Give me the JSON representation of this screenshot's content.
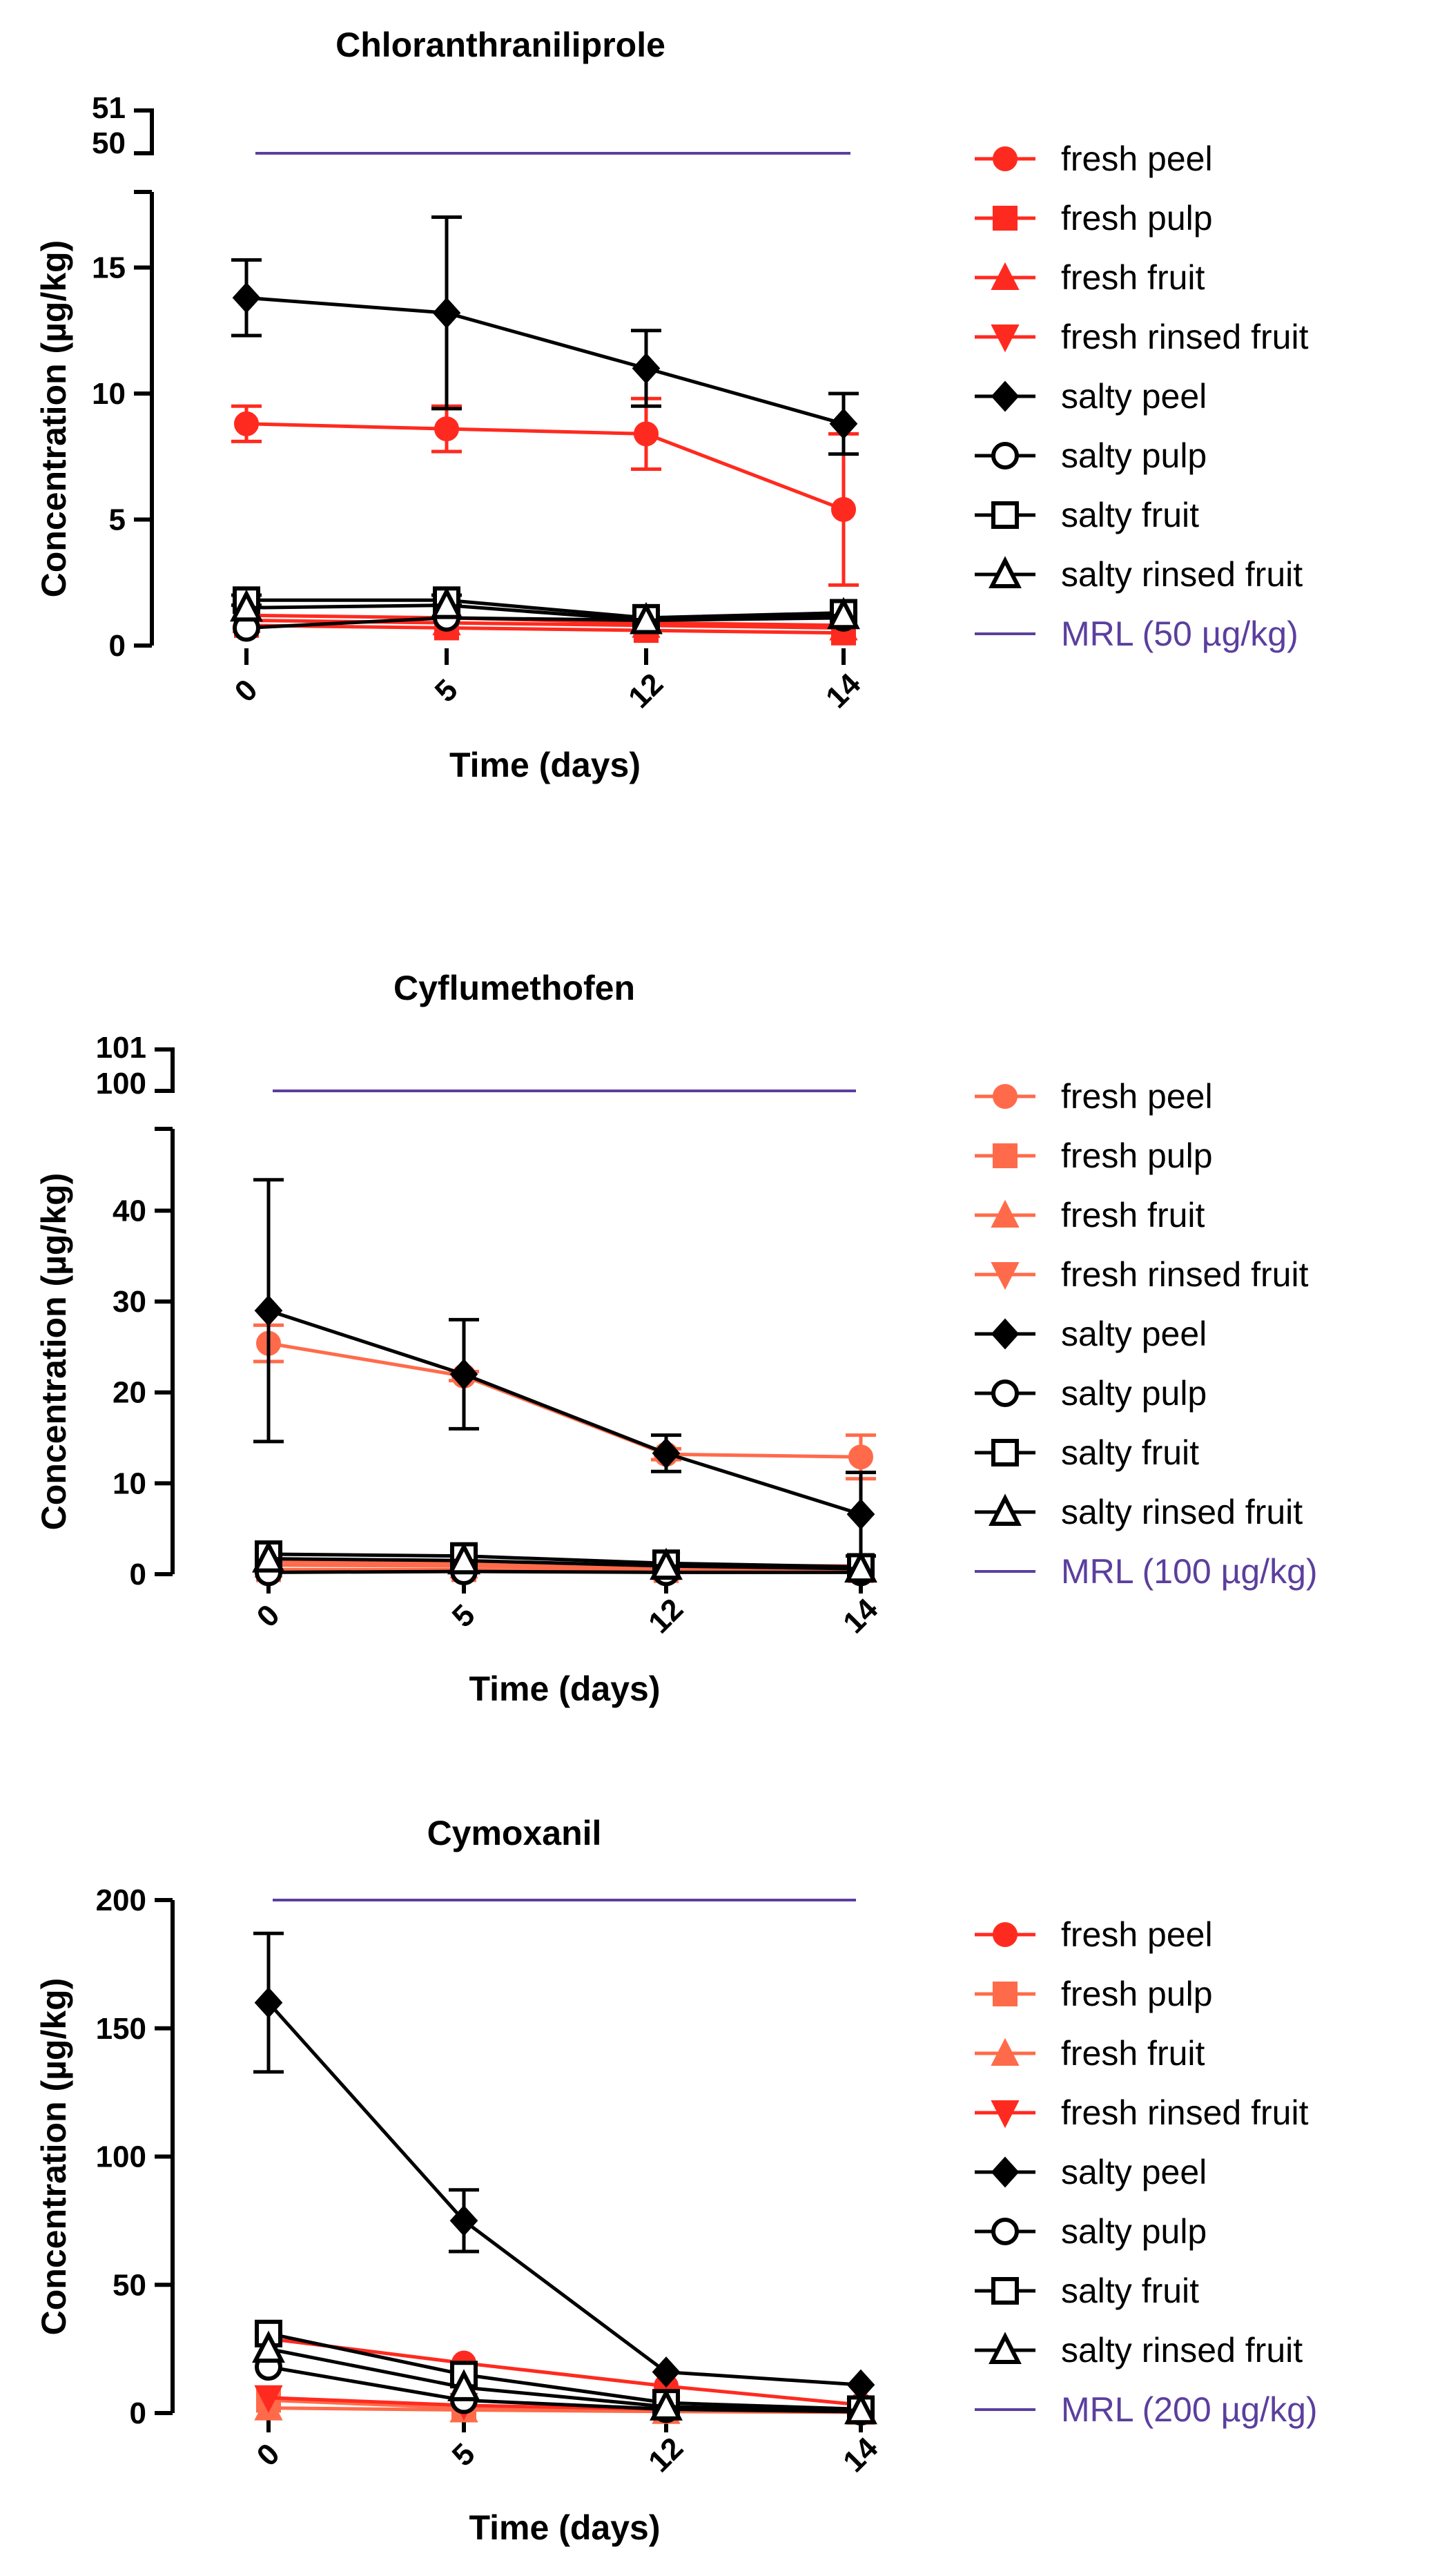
{
  "chart_data": [
    {
      "type": "line",
      "title": "Chloranthraniliprole",
      "xlabel": "Time (days)",
      "ylabel": "Concentration (µg/kg)",
      "categories": [
        "0",
        "5",
        "12",
        "14"
      ],
      "ylim": [
        0,
        18
      ],
      "y_ticks": [
        0,
        5,
        10,
        15
      ],
      "y_break_ticks": [
        51,
        50
      ],
      "series": [
        {
          "name": "fresh peel",
          "color": "#ff2a1f",
          "marker": "circle",
          "values": [
            8.8,
            8.6,
            8.4,
            5.4
          ],
          "errors": [
            0.7,
            0.9,
            1.4,
            3.0
          ]
        },
        {
          "name": "fresh pulp",
          "color": "#ff2a1f",
          "marker": "square",
          "values": [
            0.8,
            0.7,
            0.6,
            0.5
          ],
          "errors": [
            0.1,
            0.1,
            0.1,
            0.1
          ]
        },
        {
          "name": "fresh fruit",
          "color": "#ff2a1f",
          "marker": "triangle-up",
          "values": [
            1.0,
            0.9,
            0.8,
            0.7
          ],
          "errors": [
            0.1,
            0.1,
            0.1,
            0.1
          ]
        },
        {
          "name": "fresh rinsed fruit",
          "color": "#ff2a1f",
          "marker": "triangle-down",
          "values": [
            1.2,
            1.1,
            0.9,
            0.8
          ],
          "errors": [
            0.1,
            0.1,
            0.1,
            0.1
          ]
        },
        {
          "name": "salty peel",
          "color": "#000000",
          "marker": "diamond",
          "values": [
            13.8,
            13.2,
            11.0,
            8.8
          ],
          "errors": [
            1.5,
            3.8,
            1.5,
            1.2
          ]
        },
        {
          "name": "salty pulp",
          "color": "#000000",
          "marker": "circle-open",
          "values": [
            0.7,
            1.1,
            1.0,
            1.1
          ],
          "errors": [
            0.1,
            0.1,
            0.1,
            0.1
          ]
        },
        {
          "name": "salty fruit",
          "color": "#000000",
          "marker": "square-open",
          "values": [
            1.8,
            1.8,
            1.1,
            1.3
          ],
          "errors": [
            0.2,
            0.2,
            0.1,
            0.1
          ]
        },
        {
          "name": "salty rinsed fruit",
          "color": "#000000",
          "marker": "triangle-open",
          "values": [
            1.5,
            1.6,
            1.0,
            1.2
          ],
          "errors": [
            0.1,
            0.1,
            0.1,
            0.1
          ]
        }
      ],
      "mrl": {
        "name": "MRL (50 µg/kg)",
        "value": 50,
        "color": "#5b3f9e"
      }
    },
    {
      "type": "line",
      "title": "Cyflumethofen",
      "xlabel": "Time (days)",
      "ylabel": "Concentration (µg/kg)",
      "categories": [
        "0",
        "5",
        "12",
        "14"
      ],
      "ylim": [
        0,
        49
      ],
      "y_ticks": [
        0,
        10,
        20,
        30,
        40
      ],
      "y_break_ticks": [
        101,
        100
      ],
      "series": [
        {
          "name": "fresh peel",
          "color": "#ff6b4a",
          "marker": "circle",
          "values": [
            25.4,
            21.8,
            13.2,
            12.9
          ],
          "errors": [
            2.0,
            0.5,
            0.6,
            2.4
          ]
        },
        {
          "name": "fresh pulp",
          "color": "#ff6b4a",
          "marker": "square",
          "values": [
            0.5,
            0.5,
            0.4,
            0.4
          ],
          "errors": [
            0.1,
            0.1,
            0.1,
            0.1
          ]
        },
        {
          "name": "fresh fruit",
          "color": "#ff6b4a",
          "marker": "triangle-up",
          "values": [
            1.0,
            0.9,
            0.7,
            0.6
          ],
          "errors": [
            0.1,
            0.1,
            0.1,
            0.1
          ]
        },
        {
          "name": "fresh rinsed fruit",
          "color": "#ff6b4a",
          "marker": "triangle-down",
          "values": [
            1.4,
            1.2,
            1.0,
            0.9
          ],
          "errors": [
            0.1,
            0.1,
            0.1,
            0.1
          ]
        },
        {
          "name": "salty peel",
          "color": "#000000",
          "marker": "diamond",
          "values": [
            29.0,
            22.0,
            13.3,
            6.6
          ],
          "errors": [
            14.4,
            6.0,
            2.0,
            4.6
          ]
        },
        {
          "name": "salty pulp",
          "color": "#000000",
          "marker": "circle-open",
          "values": [
            0.2,
            0.3,
            0.2,
            0.2
          ],
          "errors": [
            0.1,
            0.1,
            0.1,
            0.1
          ]
        },
        {
          "name": "salty fruit",
          "color": "#000000",
          "marker": "square-open",
          "values": [
            2.2,
            2.0,
            1.2,
            0.8
          ],
          "errors": [
            0.2,
            0.2,
            0.1,
            0.1
          ]
        },
        {
          "name": "salty rinsed fruit",
          "color": "#000000",
          "marker": "triangle-open",
          "values": [
            1.7,
            1.5,
            0.9,
            0.6
          ],
          "errors": [
            0.1,
            0.1,
            0.1,
            0.1
          ]
        }
      ],
      "mrl": {
        "name": "MRL (100 µg/kg)",
        "value": 100,
        "color": "#5b3f9e"
      }
    },
    {
      "type": "line",
      "title": "Cymoxanil",
      "xlabel": "Time (days)",
      "ylabel": "Concentration (µg/kg)",
      "categories": [
        "0",
        "5",
        "12",
        "14"
      ],
      "ylim": [
        0,
        200
      ],
      "y_ticks": [
        0,
        50,
        100,
        150,
        200
      ],
      "y_break_ticks": [],
      "series": [
        {
          "name": "fresh peel",
          "color": "#ff2a1f",
          "marker": "circle",
          "values": [
            29.0,
            19.5,
            10.5,
            3.2
          ],
          "errors": [
            1.0,
            1.0,
            0.5,
            0.3
          ]
        },
        {
          "name": "fresh pulp",
          "color": "#ff6b4a",
          "marker": "square",
          "values": [
            5.0,
            2.0,
            1.0,
            0.5
          ],
          "errors": [
            0.5,
            0.3,
            0.2,
            0.1
          ]
        },
        {
          "name": "fresh fruit",
          "color": "#ff6b4a",
          "marker": "triangle-up",
          "values": [
            2.0,
            1.2,
            0.6,
            0.3
          ],
          "errors": [
            0.3,
            0.2,
            0.1,
            0.1
          ]
        },
        {
          "name": "fresh rinsed fruit",
          "color": "#ff2a1f",
          "marker": "triangle-down",
          "values": [
            6.0,
            3.0,
            1.5,
            0.8
          ],
          "errors": [
            0.5,
            0.3,
            0.2,
            0.1
          ]
        },
        {
          "name": "salty peel",
          "color": "#000000",
          "marker": "diamond",
          "values": [
            160,
            75,
            16,
            11
          ],
          "errors": [
            27,
            12,
            1,
            1
          ]
        },
        {
          "name": "salty pulp",
          "color": "#000000",
          "marker": "circle-open",
          "values": [
            18.0,
            5.0,
            1.5,
            0.5
          ],
          "errors": [
            1.0,
            0.5,
            0.2,
            0.1
          ]
        },
        {
          "name": "salty fruit",
          "color": "#000000",
          "marker": "square-open",
          "values": [
            31.0,
            15.0,
            4.0,
            1.5
          ],
          "errors": [
            1.0,
            1.0,
            0.3,
            0.2
          ]
        },
        {
          "name": "salty rinsed fruit",
          "color": "#000000",
          "marker": "triangle-open",
          "values": [
            25.0,
            10.0,
            2.5,
            1.0
          ],
          "errors": [
            1.0,
            0.5,
            0.2,
            0.1
          ]
        }
      ],
      "mrl": {
        "name": "MRL (200 µg/kg)",
        "value": 200,
        "color": "#5b3f9e"
      }
    }
  ]
}
